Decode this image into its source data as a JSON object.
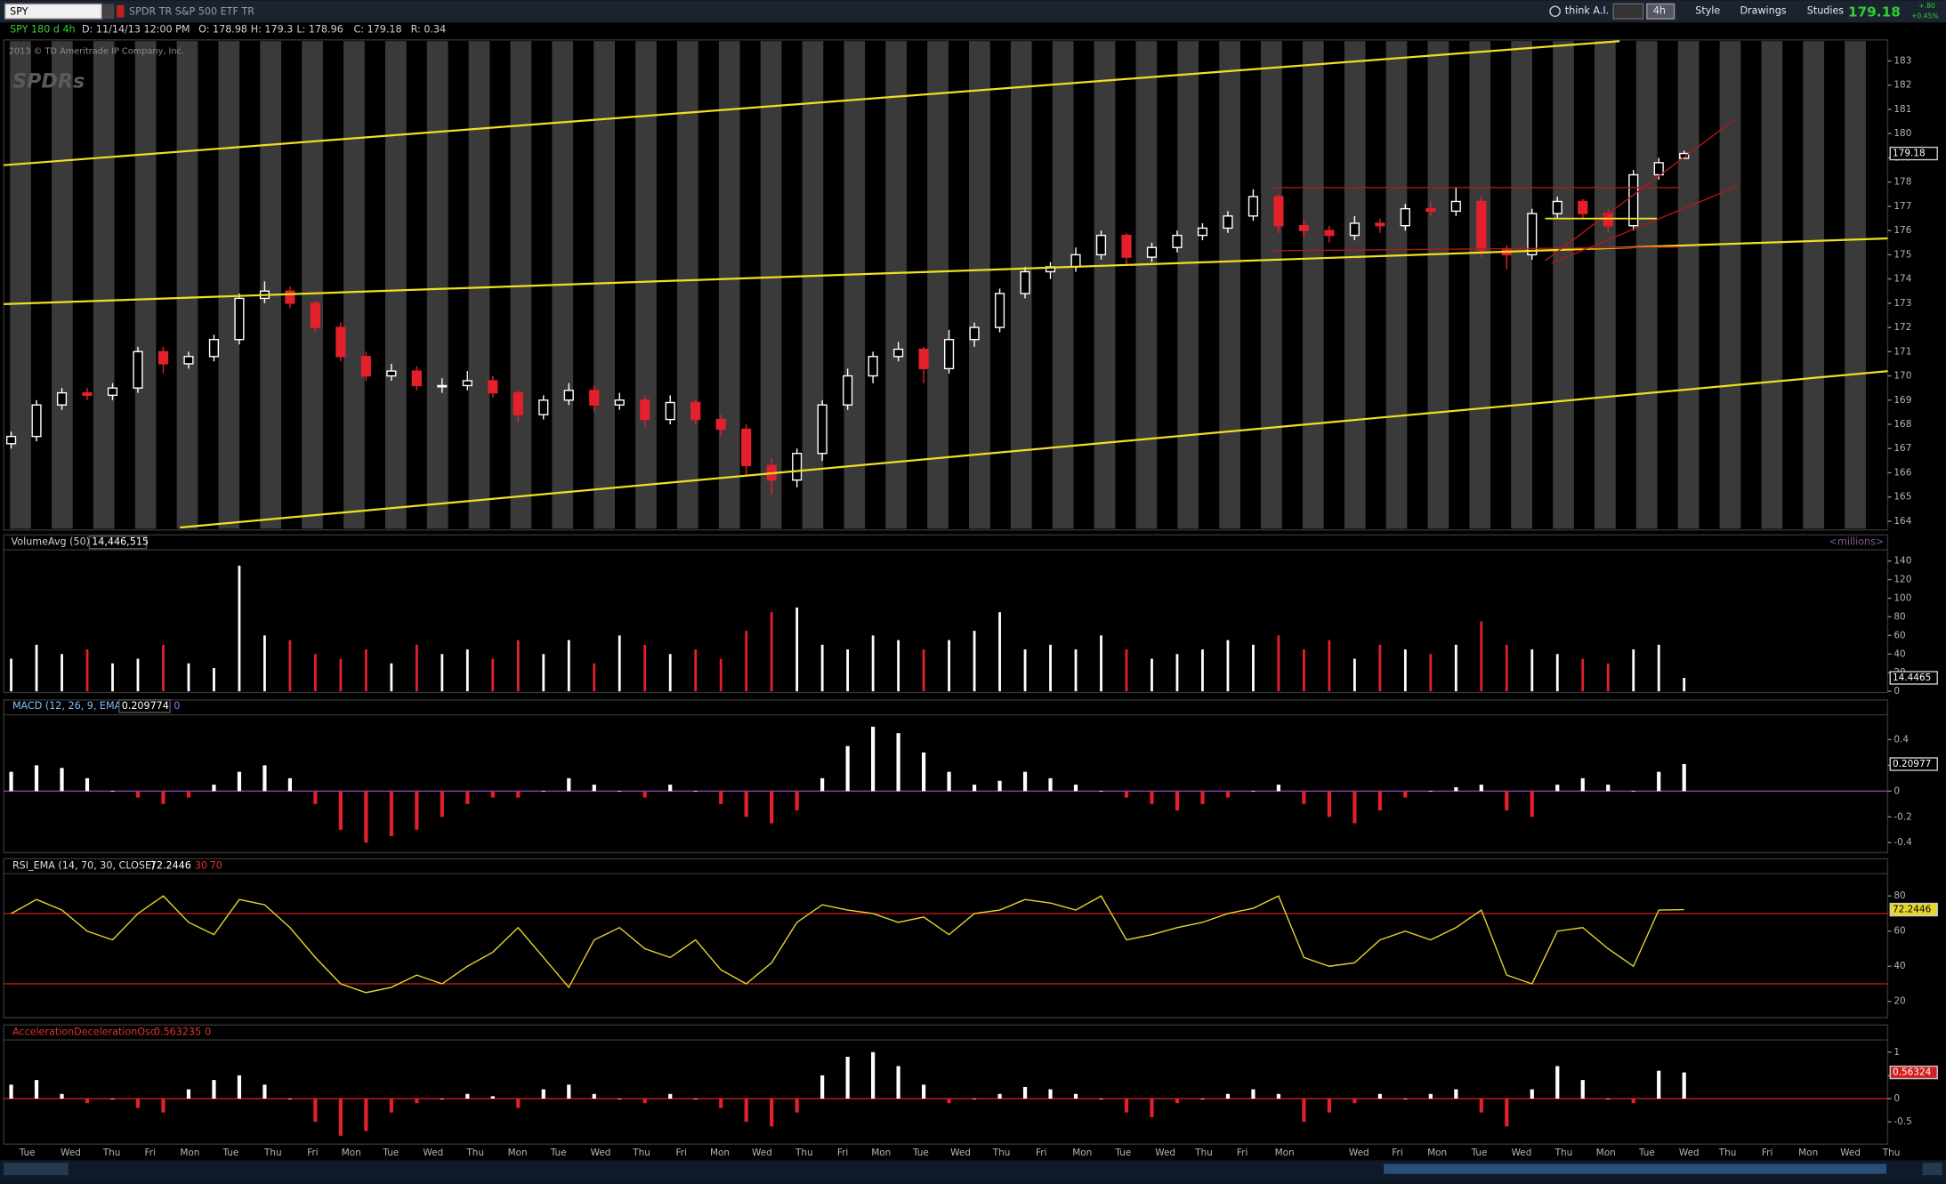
{
  "header": {
    "symbol": "SPY",
    "description": "SPDR TR S&P 500 ETF TR",
    "tools": [
      "think A.I.",
      "4h",
      "Style",
      "Drawings",
      "Studies"
    ],
    "last": "179.18",
    "change": "+.80",
    "change_pct": "+0.45%"
  },
  "info": {
    "symbol": "SPY 180 d 4h",
    "date": "D: 11/14/13 12:00 PM",
    "open": "O: 178.98",
    "high": "H: 179.3",
    "low": "L: 178.96",
    "close": "C: 179.18",
    "range": "R: 0.34"
  },
  "copyright": "2013 © TD Ameritrade IP Company, Inc.",
  "logo": "SPDRs",
  "colors": {
    "up": "#ffffff",
    "down": "#e3202b",
    "zero": "#8a3fb0",
    "level": "#c01818"
  },
  "price": {
    "type": "candlestick",
    "candles": [
      [
        167.2,
        167.7,
        167.0,
        167.5
      ],
      [
        167.5,
        169.0,
        167.3,
        168.8
      ],
      [
        168.8,
        169.5,
        168.6,
        169.3
      ],
      [
        169.3,
        169.5,
        169.0,
        169.2
      ],
      [
        169.2,
        169.7,
        169.0,
        169.5
      ],
      [
        169.5,
        171.2,
        169.3,
        171.0
      ],
      [
        171.0,
        171.2,
        170.1,
        170.5
      ],
      [
        170.5,
        171.0,
        170.3,
        170.8
      ],
      [
        170.8,
        171.7,
        170.6,
        171.5
      ],
      [
        171.5,
        173.4,
        171.3,
        173.2
      ],
      [
        173.2,
        173.9,
        173.0,
        173.5
      ],
      [
        173.5,
        173.7,
        172.8,
        173.0
      ],
      [
        173.0,
        173.1,
        171.8,
        172.0
      ],
      [
        172.0,
        172.2,
        170.6,
        170.8
      ],
      [
        170.8,
        171.0,
        169.8,
        170.0
      ],
      [
        170.0,
        170.5,
        169.8,
        170.2
      ],
      [
        170.2,
        170.4,
        169.4,
        169.6
      ],
      [
        169.6,
        169.9,
        169.3,
        169.6
      ],
      [
        169.6,
        170.2,
        169.4,
        169.8
      ],
      [
        169.8,
        170.0,
        169.1,
        169.3
      ],
      [
        169.3,
        169.4,
        168.1,
        168.4
      ],
      [
        168.4,
        169.2,
        168.2,
        169.0
      ],
      [
        169.0,
        169.7,
        168.8,
        169.4
      ],
      [
        169.4,
        169.6,
        168.5,
        168.8
      ],
      [
        168.8,
        169.3,
        168.6,
        169.0
      ],
      [
        169.0,
        169.2,
        167.9,
        168.2
      ],
      [
        168.2,
        169.2,
        168.0,
        168.9
      ],
      [
        168.9,
        169.0,
        168.0,
        168.2
      ],
      [
        168.2,
        168.4,
        167.5,
        167.8
      ],
      [
        167.8,
        168.0,
        165.9,
        166.3
      ],
      [
        166.3,
        166.6,
        165.1,
        165.7
      ],
      [
        165.7,
        167.0,
        165.4,
        166.8
      ],
      [
        166.8,
        169.0,
        166.5,
        168.8
      ],
      [
        168.8,
        170.3,
        168.6,
        170.0
      ],
      [
        170.0,
        171.0,
        169.7,
        170.8
      ],
      [
        170.8,
        171.4,
        170.6,
        171.1
      ],
      [
        171.1,
        171.2,
        169.7,
        170.3
      ],
      [
        170.3,
        171.9,
        170.1,
        171.5
      ],
      [
        171.5,
        172.2,
        171.2,
        172.0
      ],
      [
        172.0,
        173.6,
        171.8,
        173.4
      ],
      [
        173.4,
        174.5,
        173.2,
        174.3
      ],
      [
        174.3,
        174.7,
        174.0,
        174.5
      ],
      [
        174.5,
        175.3,
        174.3,
        175.0
      ],
      [
        175.0,
        176.0,
        174.8,
        175.8
      ],
      [
        175.8,
        175.9,
        174.6,
        174.9
      ],
      [
        174.9,
        175.5,
        174.7,
        175.3
      ],
      [
        175.3,
        176.0,
        175.1,
        175.8
      ],
      [
        175.8,
        176.3,
        175.6,
        176.1
      ],
      [
        176.1,
        176.8,
        175.9,
        176.6
      ],
      [
        176.6,
        177.7,
        176.4,
        177.4
      ],
      [
        177.4,
        177.5,
        175.9,
        176.2
      ],
      [
        176.2,
        176.4,
        175.7,
        176.0
      ],
      [
        176.0,
        176.2,
        175.5,
        175.8
      ],
      [
        175.8,
        176.6,
        175.6,
        176.3
      ],
      [
        176.3,
        176.5,
        175.9,
        176.2
      ],
      [
        176.2,
        177.1,
        176.0,
        176.9
      ],
      [
        176.9,
        177.2,
        176.6,
        176.8
      ],
      [
        176.8,
        177.8,
        176.6,
        177.2
      ],
      [
        177.2,
        177.4,
        174.9,
        175.2
      ],
      [
        175.2,
        175.4,
        174.4,
        175.0
      ],
      [
        175.0,
        176.9,
        174.8,
        176.7
      ],
      [
        176.7,
        177.4,
        176.5,
        177.2
      ],
      [
        177.2,
        177.3,
        176.5,
        176.7
      ],
      [
        176.7,
        176.9,
        175.9,
        176.2
      ],
      [
        176.2,
        178.5,
        176.0,
        178.3
      ],
      [
        178.3,
        179.0,
        178.1,
        178.8
      ],
      [
        178.98,
        179.3,
        178.96,
        179.18
      ]
    ],
    "ylim": [
      163.64,
      183.87
    ],
    "yticks": [
      164,
      165,
      166,
      167,
      168,
      169,
      170,
      171,
      172,
      173,
      174,
      175,
      176,
      177,
      178,
      179,
      180,
      181,
      182,
      183
    ]
  },
  "volume": {
    "type": "bar",
    "title": "VolumeAvg (50)",
    "avg": "14,446,515",
    "unit": "<millions>",
    "values": [
      35,
      50,
      40,
      45,
      30,
      35,
      50,
      30,
      25,
      135,
      60,
      55,
      40,
      35,
      45,
      30,
      50,
      40,
      45,
      35,
      55,
      40,
      55,
      30,
      60,
      50,
      40,
      45,
      35,
      65,
      85,
      90,
      50,
      45,
      60,
      55,
      45,
      55,
      65,
      85,
      45,
      50,
      45,
      60,
      45,
      35,
      40,
      45,
      55,
      50,
      60,
      45,
      55,
      35,
      50,
      45,
      40,
      50,
      75,
      50,
      45,
      40,
      35,
      30,
      45,
      50,
      14.4465
    ],
    "ylim": [
      -1.3,
      150.7
    ],
    "yticks": [
      0,
      20,
      40,
      60,
      80,
      100,
      120,
      140
    ]
  },
  "macd": {
    "type": "histogram",
    "title": "MACD (12, 26, 9, EMA)",
    "zero": 0,
    "last_label": "0.20977",
    "values": [
      0.15,
      0.2,
      0.18,
      0.1,
      0.0,
      -0.05,
      -0.1,
      -0.05,
      0.05,
      0.15,
      0.2,
      0.1,
      -0.1,
      -0.3,
      -0.4,
      -0.35,
      -0.3,
      -0.2,
      -0.1,
      -0.05,
      -0.05,
      0.0,
      0.1,
      0.05,
      0.0,
      -0.05,
      0.05,
      0.0,
      -0.1,
      -0.2,
      -0.25,
      -0.15,
      0.1,
      0.35,
      0.5,
      0.45,
      0.3,
      0.15,
      0.05,
      0.08,
      0.15,
      0.1,
      0.05,
      0.0,
      -0.05,
      -0.1,
      -0.15,
      -0.1,
      -0.05,
      0.0,
      0.05,
      -0.1,
      -0.2,
      -0.25,
      -0.15,
      -0.05,
      0.0,
      0.03,
      0.05,
      -0.15,
      -0.2,
      0.05,
      0.1,
      0.05,
      0.0,
      0.15,
      0.209774
    ],
    "ylim": [
      -0.477,
      0.573
    ],
    "yticks": [
      -0.4,
      -0.2,
      0,
      0.2,
      0.4
    ]
  },
  "rsi": {
    "type": "line",
    "title": "RSI_EMA (14, 70, 30, CLOSE)",
    "levels": [
      30,
      70
    ],
    "color": "#e8d52a",
    "values": [
      70,
      78,
      72,
      60,
      55,
      70,
      80,
      65,
      58,
      78,
      75,
      62,
      45,
      30,
      25,
      28,
      35,
      30,
      40,
      48,
      62,
      45,
      28,
      55,
      62,
      50,
      45,
      55,
      38,
      30,
      42,
      65,
      75,
      72,
      70,
      65,
      68,
      58,
      70,
      72,
      78,
      76,
      72,
      80,
      55,
      58,
      62,
      65,
      70,
      73,
      80,
      45,
      40,
      42,
      55,
      60,
      55,
      62,
      72,
      35,
      30,
      60,
      62,
      50,
      40,
      72,
      72.2446
    ],
    "ylim": [
      10.8,
      91.3
    ],
    "yticks": [
      20,
      40,
      60,
      80
    ]
  },
  "ac": {
    "type": "histogram",
    "title": "AccelerationDecelerationOsc",
    "zero": 0,
    "last_label": "0.56324",
    "values": [
      0.3,
      0.4,
      0.1,
      -0.1,
      0.0,
      -0.2,
      -0.3,
      0.2,
      0.4,
      0.5,
      0.3,
      0.0,
      -0.5,
      -0.8,
      -0.7,
      -0.3,
      -0.1,
      0.0,
      0.1,
      0.05,
      -0.2,
      0.2,
      0.3,
      0.1,
      0.0,
      -0.1,
      0.1,
      0.0,
      -0.2,
      -0.5,
      -0.6,
      -0.3,
      0.5,
      0.9,
      1.0,
      0.7,
      0.3,
      -0.1,
      0.0,
      0.1,
      0.25,
      0.2,
      0.1,
      0.0,
      -0.3,
      -0.4,
      -0.1,
      0.0,
      0.1,
      0.2,
      0.1,
      -0.5,
      -0.3,
      -0.1,
      0.1,
      0.0,
      0.1,
      0.2,
      -0.3,
      -0.6,
      0.2,
      0.7,
      0.4,
      0.0,
      -0.1,
      0.6,
      0.563235
    ],
    "ylim": [
      -0.98,
      1.21
    ],
    "yticks": [
      -0.5,
      0,
      0.5,
      1
    ]
  },
  "x_axis": {
    "labels": [
      "Tue",
      "Wed",
      "Thu",
      "Fri",
      "Mon",
      "Tue",
      "Thu",
      "Fri",
      "Mon",
      "Tue",
      "Wed",
      "Thu",
      "Mon",
      "Tue",
      "Wed",
      "Thu",
      "Fri",
      "Mon",
      "Wed",
      "Thu",
      "Fri",
      "Mon",
      "Tue",
      "Wed",
      "Thu",
      "Fri",
      "Mon",
      "Tue",
      "Wed",
      "Thu",
      "Fri",
      "Mon",
      "Wed",
      "Fri",
      "Mon",
      "Tue",
      "Wed",
      "Thu",
      "Mon",
      "Tue",
      "Wed",
      "Thu",
      "Fri",
      "Mon",
      "Wed",
      "Thu"
    ]
  }
}
